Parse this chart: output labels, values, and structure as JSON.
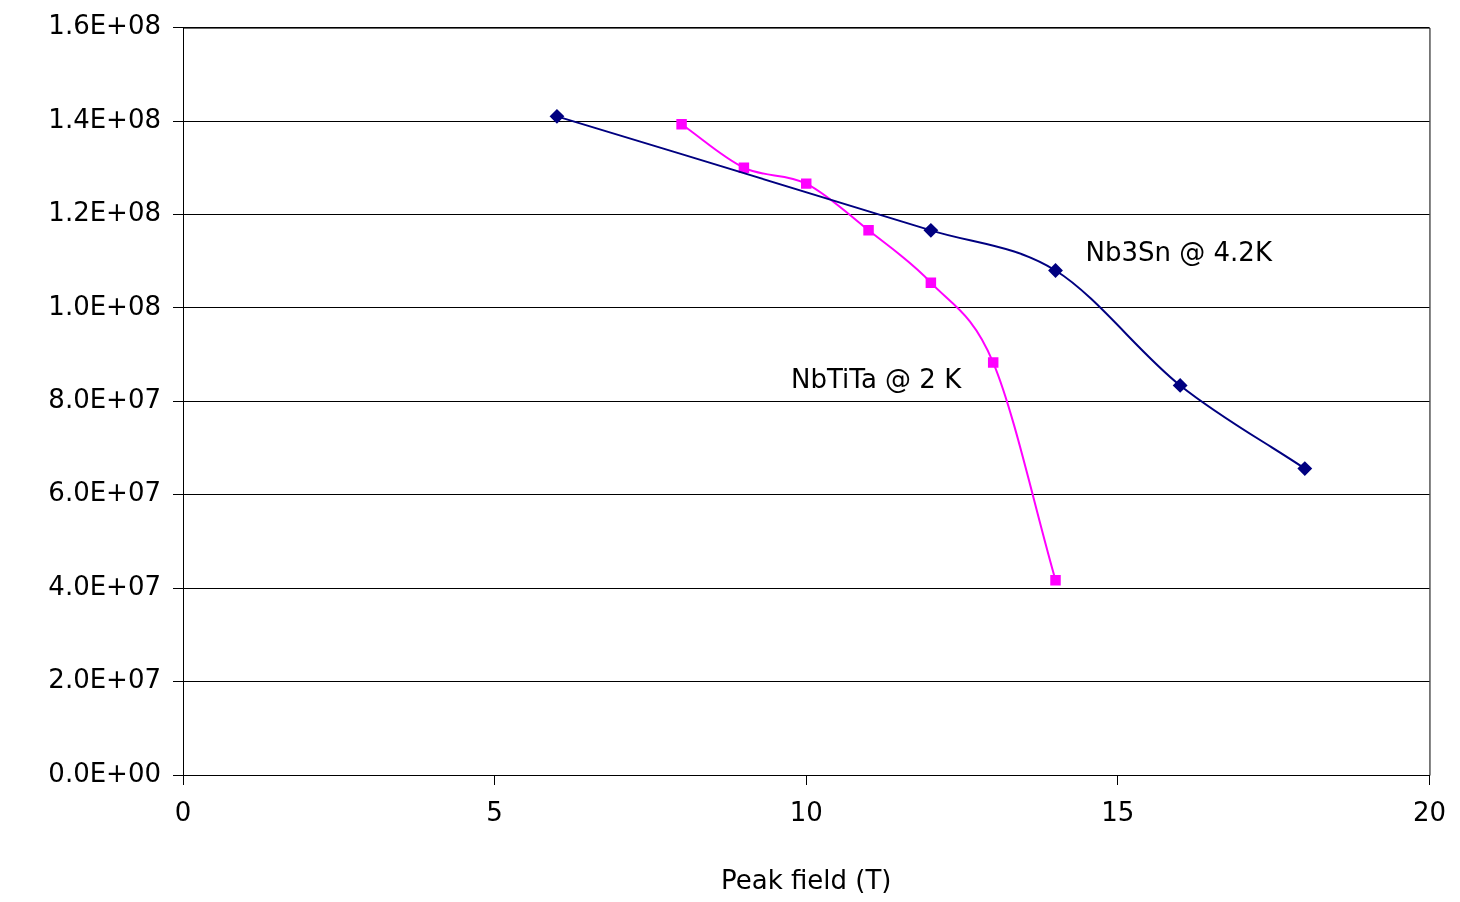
{
  "chart_data": {
    "type": "line",
    "xlabel": "Peak field (T)",
    "xlim": [
      0,
      20
    ],
    "xticks": [
      0,
      5,
      10,
      15,
      20
    ],
    "ylim": [
      0,
      160000000
    ],
    "yticks": [
      {
        "value": 0,
        "label": "0.0E+00"
      },
      {
        "value": 20000000,
        "label": "2.0E+07"
      },
      {
        "value": 40000000,
        "label": "4.0E+07"
      },
      {
        "value": 60000000,
        "label": "6.0E+07"
      },
      {
        "value": 80000000,
        "label": "8.0E+07"
      },
      {
        "value": 100000000,
        "label": "1.0E+08"
      },
      {
        "value": 120000000,
        "label": "1.2E+08"
      },
      {
        "value": 140000000,
        "label": "1.4E+08"
      },
      {
        "value": 160000000,
        "label": "1.6E+08"
      }
    ],
    "grid": "y",
    "legend": false,
    "series": [
      {
        "name": "Nb3Sn @ 4.2K",
        "color": "#000080",
        "marker": "diamond",
        "x": [
          6,
          12,
          14,
          16,
          18
        ],
        "values": [
          141000000,
          116600000,
          108000000,
          83400000,
          65600000
        ]
      },
      {
        "name": "NbTiTa @ 2 K",
        "color": "#ff00ff",
        "marker": "square",
        "x": [
          8,
          9,
          10,
          11,
          12,
          13,
          14
        ],
        "values": [
          139300000,
          130000000,
          126600000,
          116600000,
          105400000,
          88300000,
          41700000
        ]
      }
    ]
  }
}
